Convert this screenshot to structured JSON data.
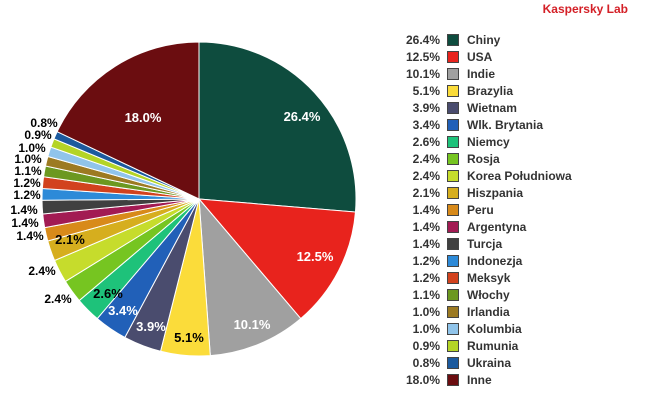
{
  "brand": {
    "label": "Kaspersky Lab"
  },
  "chart_data": {
    "type": "pie",
    "unit": "%",
    "slices": [
      {
        "label": "Chiny",
        "value": 26.4,
        "value_label": "26.4%",
        "color": "#0e4c3e",
        "inside_label": "26.4%"
      },
      {
        "label": "USA",
        "value": 12.5,
        "value_label": "12.5%",
        "color": "#e8231d",
        "inside_label": "12.5%"
      },
      {
        "label": "Indie",
        "value": 10.1,
        "value_label": "10.1%",
        "color": "#a0a0a0",
        "inside_label": "10.1%"
      },
      {
        "label": "Brazylia",
        "value": 5.1,
        "value_label": "5.1%",
        "color": "#fbdc3a",
        "inside_label": "5.1%"
      },
      {
        "label": "Wietnam",
        "value": 3.9,
        "value_label": "3.9%",
        "color": "#4a4c6e",
        "inside_label": "3.9%"
      },
      {
        "label": "Wlk. Brytania",
        "value": 3.4,
        "value_label": "3.4%",
        "color": "#2160b8",
        "inside_label": "3.4%"
      },
      {
        "label": "Niemcy",
        "value": 2.6,
        "value_label": "2.6%",
        "color": "#1ec27a",
        "inside_label": "2.6%"
      },
      {
        "label": "Rosja",
        "value": 2.4,
        "value_label": "2.4%",
        "color": "#76c521",
        "outside_label": "2.4%"
      },
      {
        "label": "Korea Południowa",
        "value": 2.4,
        "value_label": "2.4%",
        "color": "#c6dc2c",
        "outside_label": "2.4%"
      },
      {
        "label": "Hiszpania",
        "value": 2.1,
        "value_label": "2.1%",
        "color": "#d6ae1e",
        "inside_label": "2.1%"
      },
      {
        "label": "Peru",
        "value": 1.4,
        "value_label": "1.4%",
        "color": "#d88a1a",
        "outside_label": "1.4%"
      },
      {
        "label": "Argentyna",
        "value": 1.4,
        "value_label": "1.4%",
        "color": "#a21b53",
        "outside_label": "1.4%"
      },
      {
        "label": "Turcja",
        "value": 1.4,
        "value_label": "1.4%",
        "color": "#404040",
        "outside_label": "1.4%"
      },
      {
        "label": "Indonezja",
        "value": 1.2,
        "value_label": "1.2%",
        "color": "#2d8ad8",
        "outside_label": "1.2%"
      },
      {
        "label": "Meksyk",
        "value": 1.2,
        "value_label": "1.2%",
        "color": "#d2421e",
        "outside_label": "1.2%"
      },
      {
        "label": "Włochy",
        "value": 1.1,
        "value_label": "1.1%",
        "color": "#6c9820",
        "outside_label": "1.1%"
      },
      {
        "label": "Irlandia",
        "value": 1.0,
        "value_label": "1.0%",
        "color": "#9c7a22",
        "outside_label": "1.0%"
      },
      {
        "label": "Kolumbia",
        "value": 1.0,
        "value_label": "1.0%",
        "color": "#90c4ea",
        "outside_label": "1.0%"
      },
      {
        "label": "Rumunia",
        "value": 0.9,
        "value_label": "0.9%",
        "color": "#b4d426",
        "outside_label": "0.9%"
      },
      {
        "label": "Ukraina",
        "value": 0.8,
        "value_label": "0.8%",
        "color": "#1c5a9e",
        "outside_label": "0.8%"
      },
      {
        "label": "Inne",
        "value": 18.0,
        "value_label": "18.0%",
        "color": "#6b0d10",
        "inside_label": "18.0%"
      }
    ],
    "legend_position": "right"
  }
}
